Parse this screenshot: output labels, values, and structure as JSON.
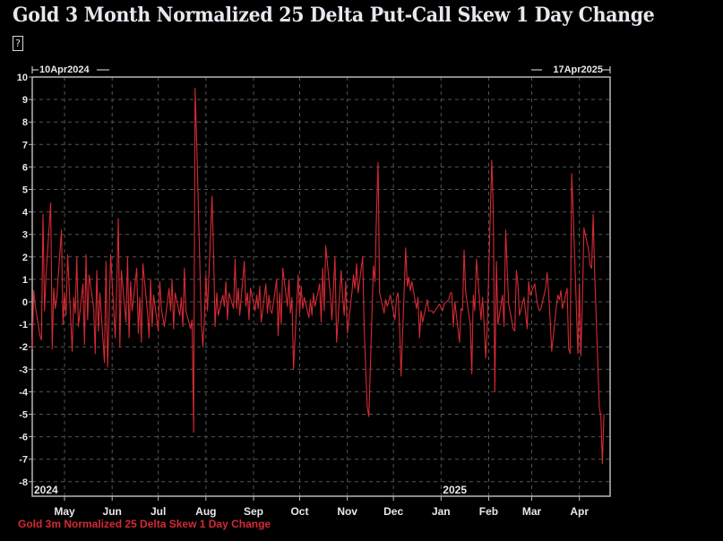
{
  "page": {
    "title": "Gold 3 Month Normalized 25 Delta Put-Call Skew 1 Day Change",
    "subtitle_glyph": "?"
  },
  "chart_data": {
    "type": "line",
    "title": "Gold 3 Month Normalized 25 Delta Put-Call Skew 1 Day Change",
    "xlabel": "",
    "ylabel": "",
    "start_label": "10Apr2024",
    "end_label": "17Apr2025",
    "x_range": [
      "2024-04-10",
      "2025-04-17"
    ],
    "ylim": [
      -8,
      10
    ],
    "y_ticks": [
      10,
      9,
      8,
      7,
      6,
      5,
      4,
      3,
      2,
      1,
      0,
      -1,
      -2,
      -3,
      -4,
      -5,
      -6,
      -7,
      -8
    ],
    "x_ticks": [
      {
        "label": "May",
        "date": "2024-05-01"
      },
      {
        "label": "Jun",
        "date": "2024-06-01"
      },
      {
        "label": "Jul",
        "date": "2024-07-01"
      },
      {
        "label": "Aug",
        "date": "2024-08-01"
      },
      {
        "label": "Sep",
        "date": "2024-09-01"
      },
      {
        "label": "Oct",
        "date": "2024-10-01"
      },
      {
        "label": "Nov",
        "date": "2024-11-01"
      },
      {
        "label": "Dec",
        "date": "2024-12-01"
      },
      {
        "label": "Jan",
        "date": "2025-01-01"
      },
      {
        "label": "Feb",
        "date": "2025-02-01"
      },
      {
        "label": "Mar",
        "date": "2025-03-01"
      },
      {
        "label": "Apr",
        "date": "2025-04-01"
      }
    ],
    "year_labels": [
      {
        "label": "2024",
        "date": "2024-04-10"
      },
      {
        "label": "2025",
        "date": "2025-01-01"
      }
    ],
    "grid": true,
    "legend": "bottom-left",
    "series": [
      {
        "name": "Gold 3m Normalized 25 Delta Skew 1 Day Change",
        "color": "#d42a33",
        "points": [
          [
            "2024-04-10",
            -2.1
          ],
          [
            "2024-04-11",
            0.5
          ],
          [
            "2024-04-12",
            -0.2
          ],
          [
            "2024-04-15",
            -1.5
          ],
          [
            "2024-04-16",
            -1.7
          ],
          [
            "2024-04-17",
            3.9
          ],
          [
            "2024-04-18",
            -0.4
          ],
          [
            "2024-04-19",
            1.2
          ],
          [
            "2024-04-22",
            4.4
          ],
          [
            "2024-04-23",
            -2.1
          ],
          [
            "2024-04-24",
            0.6
          ],
          [
            "2024-04-25",
            -0.3
          ],
          [
            "2024-04-26",
            0.2
          ],
          [
            "2024-04-29",
            3.2
          ],
          [
            "2024-04-30",
            -1.0
          ],
          [
            "2024-05-01",
            0.4
          ],
          [
            "2024-05-02",
            -0.6
          ],
          [
            "2024-05-03",
            2.1
          ],
          [
            "2024-05-06",
            -2.2
          ],
          [
            "2024-05-07",
            0.2
          ],
          [
            "2024-05-08",
            -0.5
          ],
          [
            "2024-05-09",
            2.0
          ],
          [
            "2024-05-10",
            -1.1
          ],
          [
            "2024-05-13",
            0.8
          ],
          [
            "2024-05-14",
            -1.9
          ],
          [
            "2024-05-15",
            2.1
          ],
          [
            "2024-05-16",
            -0.8
          ],
          [
            "2024-05-17",
            1.2
          ],
          [
            "2024-05-20",
            -0.3
          ],
          [
            "2024-05-21",
            -2.3
          ],
          [
            "2024-05-22",
            1.4
          ],
          [
            "2024-05-23",
            -1.3
          ],
          [
            "2024-05-24",
            0.4
          ],
          [
            "2024-05-27",
            -2.7
          ],
          [
            "2024-05-28",
            1.8
          ],
          [
            "2024-05-29",
            -2.9
          ],
          [
            "2024-05-30",
            -0.6
          ],
          [
            "2024-05-31",
            2.1
          ],
          [
            "2024-06-03",
            -1.6
          ],
          [
            "2024-06-04",
            0.7
          ],
          [
            "2024-06-05",
            3.7
          ],
          [
            "2024-06-06",
            -2.0
          ],
          [
            "2024-06-07",
            1.4
          ],
          [
            "2024-06-10",
            -0.9
          ],
          [
            "2024-06-11",
            2.0
          ],
          [
            "2024-06-12",
            -1.6
          ],
          [
            "2024-06-13",
            0.9
          ],
          [
            "2024-06-14",
            -0.4
          ],
          [
            "2024-06-17",
            1.5
          ],
          [
            "2024-06-18",
            -1.4
          ],
          [
            "2024-06-19",
            0.2
          ],
          [
            "2024-06-20",
            -1.8
          ],
          [
            "2024-06-21",
            1.7
          ],
          [
            "2024-06-24",
            -0.5
          ],
          [
            "2024-06-25",
            -1.6
          ],
          [
            "2024-06-26",
            1.0
          ],
          [
            "2024-06-27",
            -1.1
          ],
          [
            "2024-06-28",
            0.3
          ],
          [
            "2024-07-01",
            -1.3
          ],
          [
            "2024-07-02",
            0.9
          ],
          [
            "2024-07-03",
            -0.3
          ],
          [
            "2024-07-05",
            -1.1
          ],
          [
            "2024-07-08",
            0.6
          ],
          [
            "2024-07-09",
            -0.4
          ],
          [
            "2024-07-10",
            1.0
          ],
          [
            "2024-07-11",
            -1.2
          ],
          [
            "2024-07-12",
            0.4
          ],
          [
            "2024-07-15",
            -0.6
          ],
          [
            "2024-07-16",
            0.2
          ],
          [
            "2024-07-17",
            -1.1
          ],
          [
            "2024-07-18",
            1.5
          ],
          [
            "2024-07-19",
            -0.4
          ],
          [
            "2024-07-22",
            -1.2
          ],
          [
            "2024-07-23",
            -0.8
          ],
          [
            "2024-07-24",
            -5.8
          ],
          [
            "2024-07-25",
            9.5
          ],
          [
            "2024-07-26",
            7.0
          ],
          [
            "2024-07-29",
            -0.9
          ],
          [
            "2024-07-30",
            -2.0
          ],
          [
            "2024-07-31",
            -0.8
          ],
          [
            "2024-08-01",
            1.2
          ],
          [
            "2024-08-02",
            -0.4
          ],
          [
            "2024-08-05",
            4.7
          ],
          [
            "2024-08-06",
            2.1
          ],
          [
            "2024-08-07",
            -1.1
          ],
          [
            "2024-08-08",
            0.4
          ],
          [
            "2024-08-09",
            -0.6
          ],
          [
            "2024-08-12",
            0.3
          ],
          [
            "2024-08-13",
            -0.2
          ],
          [
            "2024-08-14",
            0.9
          ],
          [
            "2024-08-15",
            -0.8
          ],
          [
            "2024-08-16",
            0.4
          ],
          [
            "2024-08-19",
            -0.3
          ],
          [
            "2024-08-20",
            1.9
          ],
          [
            "2024-08-21",
            -0.3
          ],
          [
            "2024-08-22",
            0.6
          ],
          [
            "2024-08-23",
            -0.6
          ],
          [
            "2024-08-26",
            1.8
          ],
          [
            "2024-08-27",
            -0.2
          ],
          [
            "2024-08-28",
            0.4
          ],
          [
            "2024-08-29",
            -0.8
          ],
          [
            "2024-08-30",
            0.6
          ],
          [
            "2024-09-02",
            -0.4
          ],
          [
            "2024-09-03",
            0.3
          ],
          [
            "2024-09-04",
            -0.3
          ],
          [
            "2024-09-05",
            0.7
          ],
          [
            "2024-09-06",
            -0.9
          ],
          [
            "2024-09-09",
            0.8
          ],
          [
            "2024-09-10",
            -0.5
          ],
          [
            "2024-09-11",
            0.3
          ],
          [
            "2024-09-12",
            -0.4
          ],
          [
            "2024-09-13",
            -0.5
          ],
          [
            "2024-09-16",
            1.0
          ],
          [
            "2024-09-17",
            -1.5
          ],
          [
            "2024-09-18",
            0.4
          ],
          [
            "2024-09-19",
            -1.0
          ],
          [
            "2024-09-20",
            1.5
          ],
          [
            "2024-09-23",
            -0.2
          ],
          [
            "2024-09-24",
            1.0
          ],
          [
            "2024-09-25",
            -0.5
          ],
          [
            "2024-09-26",
            0.2
          ],
          [
            "2024-09-27",
            -3.0
          ],
          [
            "2024-09-30",
            1.2
          ],
          [
            "2024-10-01",
            -0.5
          ],
          [
            "2024-10-02",
            0.7
          ],
          [
            "2024-10-03",
            -0.3
          ],
          [
            "2024-10-04",
            0.2
          ],
          [
            "2024-10-07",
            -0.7
          ],
          [
            "2024-10-08",
            0.1
          ],
          [
            "2024-10-09",
            -0.6
          ],
          [
            "2024-10-10",
            0.4
          ],
          [
            "2024-10-11",
            -0.2
          ],
          [
            "2024-10-14",
            0.8
          ],
          [
            "2024-10-15",
            -0.9
          ],
          [
            "2024-10-16",
            1.5
          ],
          [
            "2024-10-17",
            -0.4
          ],
          [
            "2024-10-18",
            2.5
          ],
          [
            "2024-10-21",
            0.3
          ],
          [
            "2024-10-22",
            -0.8
          ],
          [
            "2024-10-23",
            0.6
          ],
          [
            "2024-10-24",
            2.0
          ],
          [
            "2024-10-25",
            -1.8
          ],
          [
            "2024-10-28",
            1.4
          ],
          [
            "2024-10-29",
            0.2
          ],
          [
            "2024-10-30",
            -0.6
          ],
          [
            "2024-10-31",
            0.9
          ],
          [
            "2024-11-01",
            -1.4
          ],
          [
            "2024-11-04",
            0.4
          ],
          [
            "2024-11-05",
            1.2
          ],
          [
            "2024-11-06",
            0.6
          ],
          [
            "2024-11-07",
            1.7
          ],
          [
            "2024-11-08",
            0.4
          ],
          [
            "2024-11-11",
            2.0
          ],
          [
            "2024-11-12",
            -1.2
          ],
          [
            "2024-11-13",
            -3.0
          ],
          [
            "2024-11-14",
            -4.7
          ],
          [
            "2024-11-15",
            -5.1
          ],
          [
            "2024-11-18",
            1.6
          ],
          [
            "2024-11-19",
            0.9
          ],
          [
            "2024-11-20",
            4.0
          ],
          [
            "2024-11-21",
            6.2
          ],
          [
            "2024-11-22",
            0.4
          ],
          [
            "2024-11-25",
            -0.5
          ],
          [
            "2024-11-26",
            0.1
          ],
          [
            "2024-11-27",
            -0.2
          ],
          [
            "2024-11-29",
            0.3
          ],
          [
            "2024-12-02",
            -0.8
          ],
          [
            "2024-12-03",
            0.2
          ],
          [
            "2024-12-04",
            0.4
          ],
          [
            "2024-12-05",
            -1.1
          ],
          [
            "2024-12-06",
            -3.3
          ],
          [
            "2024-12-09",
            2.4
          ],
          [
            "2024-12-10",
            0.7
          ],
          [
            "2024-12-11",
            1.1
          ],
          [
            "2024-12-12",
            0.5
          ],
          [
            "2024-12-13",
            0.9
          ],
          [
            "2024-12-16",
            -0.3
          ],
          [
            "2024-12-17",
            0.2
          ],
          [
            "2024-12-18",
            -1.6
          ],
          [
            "2024-12-19",
            -0.4
          ],
          [
            "2024-12-20",
            -0.9
          ],
          [
            "2024-12-23",
            0.1
          ],
          [
            "2024-12-24",
            -0.4
          ],
          [
            "2024-12-26",
            -0.4
          ],
          [
            "2024-12-27",
            -0.5
          ],
          [
            "2024-12-30",
            -0.2
          ],
          [
            "2024-12-31",
            -0.1
          ],
          [
            "2025-01-02",
            -0.4
          ],
          [
            "2025-01-03",
            -0.1
          ],
          [
            "2025-01-06",
            0.1
          ],
          [
            "2025-01-07",
            0.4
          ],
          [
            "2025-01-08",
            0.4
          ],
          [
            "2025-01-09",
            -1.1
          ],
          [
            "2025-01-10",
            0.0
          ],
          [
            "2025-01-13",
            -1.8
          ],
          [
            "2025-01-14",
            -0.3
          ],
          [
            "2025-01-15",
            -0.4
          ],
          [
            "2025-01-16",
            2.3
          ],
          [
            "2025-01-17",
            0.4
          ],
          [
            "2025-01-20",
            -1.0
          ],
          [
            "2025-01-21",
            -3.2
          ],
          [
            "2025-01-22",
            0.3
          ],
          [
            "2025-01-23",
            -0.4
          ],
          [
            "2025-01-24",
            1.9
          ],
          [
            "2025-01-27",
            -0.8
          ],
          [
            "2025-01-28",
            0.2
          ],
          [
            "2025-01-29",
            -0.9
          ],
          [
            "2025-01-30",
            -2.5
          ],
          [
            "2025-01-31",
            -1.2
          ],
          [
            "2025-02-03",
            6.3
          ],
          [
            "2025-02-04",
            4.0
          ],
          [
            "2025-02-05",
            -4.0
          ],
          [
            "2025-02-06",
            1.8
          ],
          [
            "2025-02-07",
            -1.0
          ],
          [
            "2025-02-10",
            0.3
          ],
          [
            "2025-02-11",
            -1.1
          ],
          [
            "2025-02-12",
            3.2
          ],
          [
            "2025-02-13",
            1.5
          ],
          [
            "2025-02-14",
            -0.1
          ],
          [
            "2025-02-17",
            -1.2
          ],
          [
            "2025-02-18",
            -1.3
          ],
          [
            "2025-02-19",
            1.4
          ],
          [
            "2025-02-20",
            0.8
          ],
          [
            "2025-02-21",
            -0.6
          ],
          [
            "2025-02-24",
            0.2
          ],
          [
            "2025-02-25",
            -0.5
          ],
          [
            "2025-02-26",
            -1.2
          ],
          [
            "2025-02-27",
            0.9
          ],
          [
            "2025-02-28",
            0.3
          ],
          [
            "2025-03-03",
            0.8
          ],
          [
            "2025-03-04",
            0.2
          ],
          [
            "2025-03-05",
            -0.2
          ],
          [
            "2025-03-06",
            -0.4
          ],
          [
            "2025-03-07",
            -0.3
          ],
          [
            "2025-03-10",
            0.6
          ],
          [
            "2025-03-11",
            1.3
          ],
          [
            "2025-03-12",
            0.4
          ],
          [
            "2025-03-13",
            -0.8
          ],
          [
            "2025-03-14",
            -2.2
          ],
          [
            "2025-03-17",
            -0.2
          ],
          [
            "2025-03-18",
            0.3
          ],
          [
            "2025-03-19",
            0.1
          ],
          [
            "2025-03-20",
            0.5
          ],
          [
            "2025-03-21",
            -0.3
          ],
          [
            "2025-03-24",
            0.6
          ],
          [
            "2025-03-25",
            -2.1
          ],
          [
            "2025-03-26",
            -2.3
          ],
          [
            "2025-03-27",
            5.7
          ],
          [
            "2025-03-28",
            4.0
          ],
          [
            "2025-03-31",
            -2.3
          ],
          [
            "2025-04-01",
            0.8
          ],
          [
            "2025-04-02",
            -2.4
          ],
          [
            "2025-04-03",
            0.1
          ],
          [
            "2025-04-04",
            3.3
          ],
          [
            "2025-04-07",
            2.3
          ],
          [
            "2025-04-08",
            1.6
          ],
          [
            "2025-04-09",
            1.5
          ],
          [
            "2025-04-10",
            3.9
          ],
          [
            "2025-04-11",
            1.2
          ],
          [
            "2025-04-14",
            -4.7
          ],
          [
            "2025-04-15",
            -5.1
          ],
          [
            "2025-04-16",
            -7.2
          ],
          [
            "2025-04-17",
            -5.0
          ]
        ]
      }
    ]
  },
  "legend": {
    "label": "Gold 3m Normalized 25 Delta Skew 1 Day Change"
  }
}
